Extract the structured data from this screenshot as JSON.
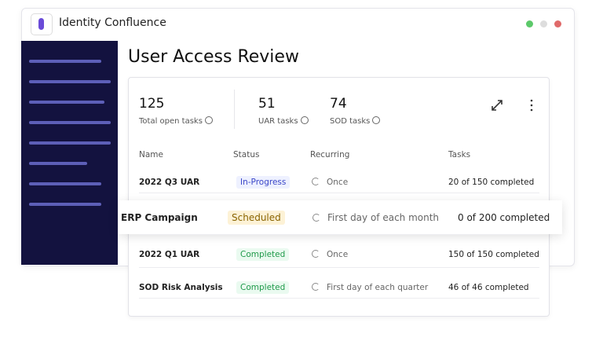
{
  "app": {
    "title": "Identity Confluence"
  },
  "page": {
    "title": "User Access Review"
  },
  "stats": [
    {
      "value": "125",
      "label": "Total open tasks"
    },
    {
      "value": "51",
      "label": "UAR tasks"
    },
    {
      "value": "74",
      "label": "SOD tasks"
    }
  ],
  "table": {
    "columns": [
      "Name",
      "Status",
      "Recurring",
      "Tasks"
    ],
    "rows": [
      [
        "2022 Q3 UAR",
        "In-Progress",
        "Once",
        "20 of 150 completed"
      ],
      [
        "ERP Campaign",
        "Scheduled",
        "First day of each month",
        "0 of 200 completed"
      ],
      [
        "2022 Q1 UAR",
        "Completed",
        "Once",
        "150 of 150 completed"
      ],
      [
        "SOD Risk Analysis",
        "Completed",
        "First day of each quarter",
        "46 of 46 completed"
      ]
    ]
  }
}
